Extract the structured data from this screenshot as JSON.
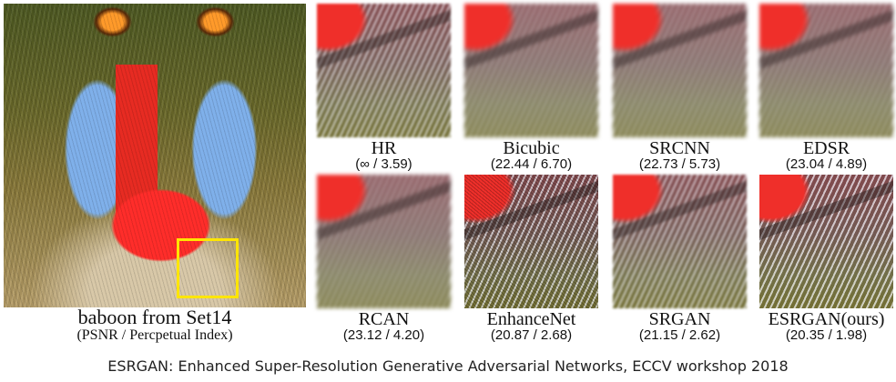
{
  "main": {
    "title": "baboon from Set14",
    "subtitle": "(PSNR / Percpetual Index)"
  },
  "patches": [
    {
      "label": "HR",
      "score": "(∞ / 3.59)"
    },
    {
      "label": "Bicubic",
      "score": "(22.44 / 6.70)"
    },
    {
      "label": "SRCNN",
      "score": "(22.73 / 5.73)"
    },
    {
      "label": "EDSR",
      "score": "(23.04 / 4.89)"
    },
    {
      "label": "RCAN",
      "score": "(23.12 / 4.20)"
    },
    {
      "label": "EnhanceNet",
      "score": "(20.87 / 2.68)"
    },
    {
      "label": "SRGAN",
      "score": "(21.15 / 2.62)"
    },
    {
      "label": "ESRGAN(ours)",
      "score": "(20.35 / 1.98)"
    }
  ],
  "caption": "ESRGAN: Enhanced Super-Resolution Generative Adversarial Networks, ECCV workshop 2018",
  "colors": {
    "highlight_box": "#ffe500"
  }
}
